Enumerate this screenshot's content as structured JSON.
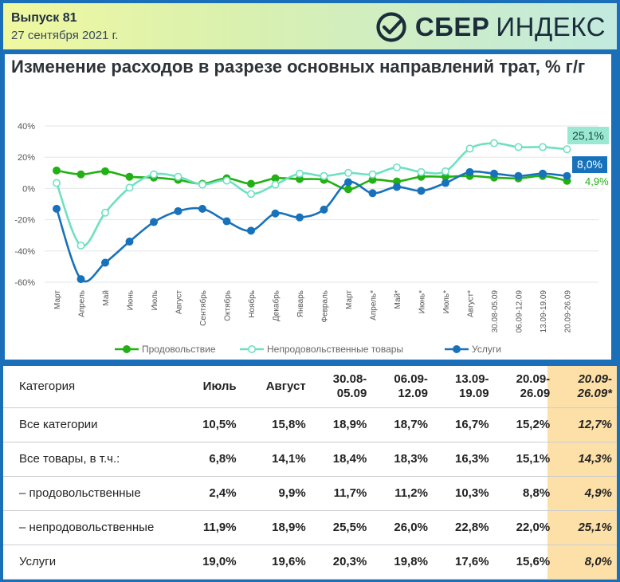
{
  "header": {
    "issue": "Выпуск 81",
    "date": "27 сентября 2021 г.",
    "logo_bold": "СБЕР",
    "logo_light": "ИНДЕКС"
  },
  "chart_data": {
    "type": "line",
    "title": "Изменение расходов в разрезе основных направлений трат, % г/г",
    "categories": [
      "Март",
      "Апрель",
      "Май",
      "Июнь",
      "Июль",
      "Август",
      "Сентябрь",
      "Октябрь",
      "Ноябрь",
      "Декабрь",
      "Январь",
      "Февраль",
      "Март",
      "Апрель*",
      "Май*",
      "Июнь*",
      "Июль*",
      "Август*",
      "30.08-05.09",
      "06.09-12.09",
      "13.09-19.09",
      "20.09-26.09"
    ],
    "y_ticks": [
      "40%",
      "20%",
      "0%",
      "-20%",
      "-40%",
      "-60%"
    ],
    "ylim": [
      -60,
      40
    ],
    "series": [
      {
        "name": "Продовольствие",
        "color": "#22b014",
        "values": [
          11.5,
          9,
          11,
          7.5,
          7,
          5.5,
          3,
          6.5,
          3,
          6.5,
          6,
          5.5,
          -0.5,
          5.5,
          4.5,
          7.5,
          7.5,
          8,
          7,
          6.5,
          8,
          4.9
        ]
      },
      {
        "name": "Непродовольственные товары",
        "color": "#6ee0c0",
        "values": [
          3.5,
          -36.5,
          -15.5,
          0.5,
          9,
          7.5,
          2.5,
          5,
          -3.5,
          2.5,
          9.5,
          8,
          10,
          9,
          13.5,
          10.5,
          11,
          25.5,
          29,
          26.5,
          26.5,
          25.1
        ]
      },
      {
        "name": "Услуги",
        "color": "#1872bb",
        "values": [
          -13,
          -58,
          -47.5,
          -34,
          -21.5,
          -14.5,
          -13,
          -21,
          -27,
          -16,
          -18.5,
          -13.5,
          4,
          -3,
          1,
          -1.5,
          3.5,
          10.5,
          9.5,
          8,
          9.5,
          8.0
        ]
      }
    ],
    "end_labels": [
      "4,9%",
      "25,1%",
      "8,0%"
    ],
    "grid": true,
    "legend": "bottom"
  },
  "table": {
    "headers": [
      "Категория",
      "Июль",
      "Август",
      "30.08-\n05.09",
      "06.09-\n12.09",
      "13.09-\n19.09",
      "20.09-\n26.09",
      "20.09-\n26.09*"
    ],
    "rows": [
      [
        "Все категории",
        "10,5%",
        "15,8%",
        "18,9%",
        "18,7%",
        "16,7%",
        "15,2%",
        "12,7%"
      ],
      [
        "Все товары, в т.ч.:",
        "6,8%",
        "14,1%",
        "18,4%",
        "18,3%",
        "16,3%",
        "15,1%",
        "14,3%"
      ],
      [
        "– продовольственные",
        "2,4%",
        "9,9%",
        "11,7%",
        "11,2%",
        "10,3%",
        "8,8%",
        "4,9%"
      ],
      [
        "– непродовольственные",
        "11,9%",
        "18,9%",
        "25,5%",
        "26,0%",
        "22,8%",
        "22,0%",
        "25,1%"
      ],
      [
        "Услуги",
        "19,0%",
        "19,6%",
        "20,3%",
        "19,8%",
        "17,6%",
        "15,6%",
        "8,0%"
      ]
    ],
    "highlight_color": "#fde0a8"
  }
}
